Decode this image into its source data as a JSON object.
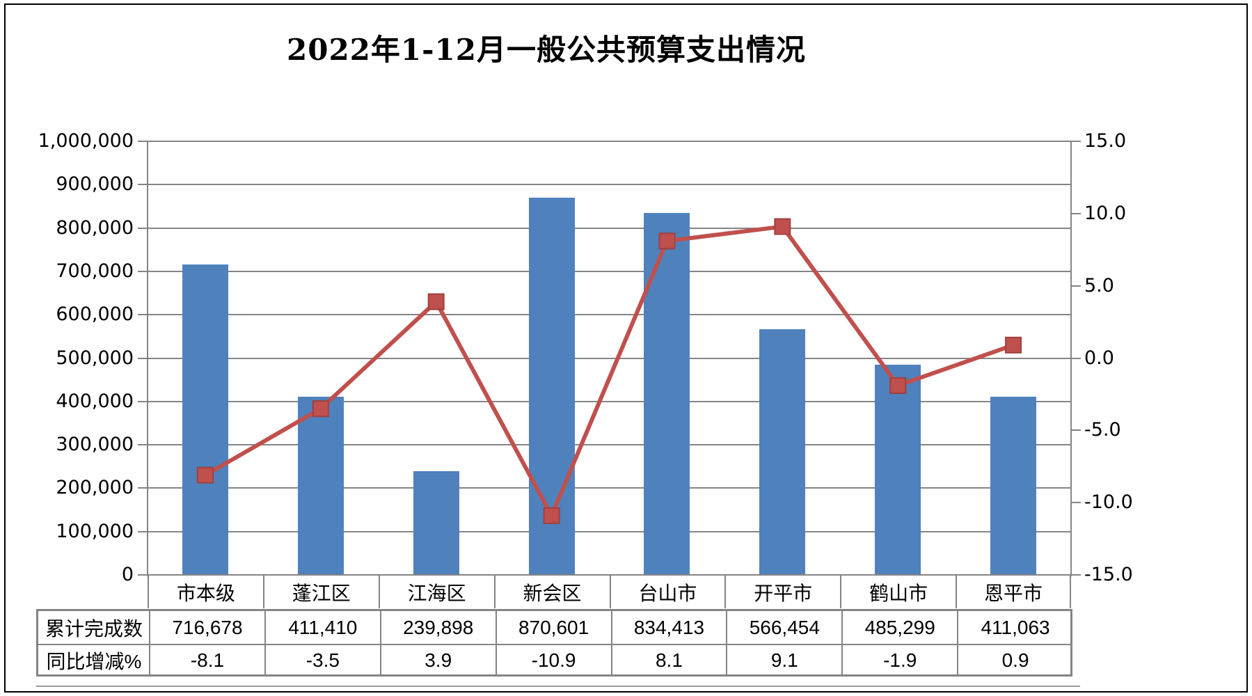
{
  "title": "2022年1-12月一般公共预算支出情况",
  "colors": {
    "bar": "#4F81BD",
    "line": "#C0504D",
    "line_marker_edge": "#A0403E",
    "grid": "#848484"
  },
  "chart_data": {
    "type": "combo",
    "title": "2022年1-12月一般公共预算支出情况",
    "categories": [
      "市本级",
      "蓬江区",
      "江海区",
      "新会区",
      "台山市",
      "开平市",
      "鹤山市",
      "恩平市"
    ],
    "series": [
      {
        "name": "累计完成数",
        "type": "bar",
        "axis": "left",
        "color": "#4F81BD",
        "values": [
          716678,
          411410,
          239898,
          870601,
          834413,
          566454,
          485299,
          411063
        ]
      },
      {
        "name": "同比增减%",
        "type": "line",
        "axis": "right",
        "color": "#C0504D",
        "marker": "square",
        "values": [
          -8.1,
          -3.5,
          3.9,
          -10.9,
          8.1,
          9.1,
          -1.9,
          0.9
        ]
      }
    ],
    "left_axis": {
      "min": 0,
      "max": 1000000,
      "step": 100000,
      "tick_labels": [
        "1,000,000",
        "900,000",
        "800,000",
        "700,000",
        "600,000",
        "500,000",
        "400,000",
        "300,000",
        "200,000",
        "100,000",
        "0"
      ]
    },
    "right_axis": {
      "min": -15,
      "max": 15,
      "step": 5,
      "tick_labels": [
        "15.0",
        "10.0",
        "5.0",
        "0.0",
        "-5.0",
        "-10.0",
        "-15.0"
      ]
    },
    "grid": true,
    "legend": "none"
  },
  "table": {
    "rows": [
      {
        "header": "累计完成数",
        "values": [
          "716,678",
          "411,410",
          "239,898",
          "870,601",
          "834,413",
          "566,454",
          "485,299",
          "411,063"
        ]
      },
      {
        "header": "同比增减%",
        "values": [
          "-8.1",
          "-3.5",
          "3.9",
          "-10.9",
          "8.1",
          "9.1",
          "-1.9",
          "0.9"
        ]
      }
    ]
  }
}
